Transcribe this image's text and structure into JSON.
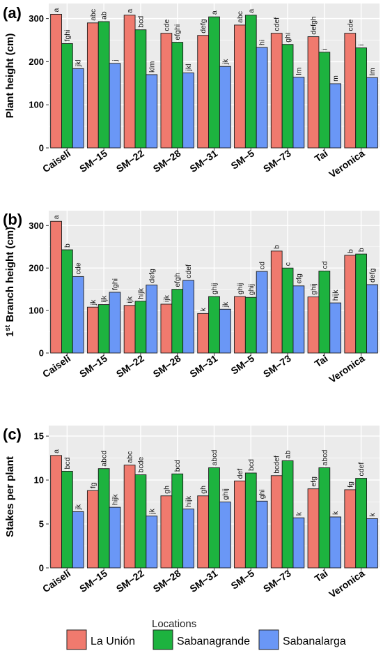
{
  "legend": {
    "title": "Locations",
    "items": [
      "La Unión",
      "Sabanagrande",
      "Sabanalarga"
    ]
  },
  "colors": {
    "series": [
      "#F07A6E",
      "#1DB33F",
      "#6A97F6"
    ],
    "panel_bg": "#EBEBEB",
    "grid": "#FFFFFF"
  },
  "chart_data": [
    {
      "type": "bar",
      "panel": "(a)",
      "ylabel": "Plant height (cm)",
      "ylim": [
        0,
        335
      ],
      "yticks": [
        0,
        100,
        200,
        300
      ],
      "categories": [
        "Caiseli",
        "SM−15",
        "SM−22",
        "SM−28",
        "SM−31",
        "SM−5",
        "SM−73",
        "Tai",
        "Veronica"
      ],
      "series": [
        {
          "name": "La Unión",
          "values": [
            310,
            290,
            308,
            266,
            261,
            285,
            266,
            258,
            266
          ],
          "labels": [
            "a",
            "abc",
            "a",
            "cde",
            "defg",
            "abc",
            "cdef",
            "defgh",
            "cde"
          ]
        },
        {
          "name": "Sabanagrande",
          "values": [
            242,
            293,
            274,
            245,
            304,
            308,
            240,
            222,
            232
          ],
          "labels": [
            "fghi",
            "ab",
            "bcd",
            "efghi",
            "a",
            "a",
            "ghi",
            "i",
            "i"
          ]
        },
        {
          "name": "Sabanalarga",
          "values": [
            184,
            196,
            170,
            174,
            189,
            233,
            164,
            149,
            163
          ],
          "labels": [
            "jkl",
            "j",
            "klm",
            "jkl",
            "jk",
            "hi",
            "lm",
            "m",
            "lm"
          ]
        }
      ]
    },
    {
      "type": "bar",
      "panel": "(b)",
      "ylabel": "1st Branch height (cm)",
      "ylabel_parts": [
        "1",
        "st",
        " Branch height (cm)"
      ],
      "ylim": [
        0,
        335
      ],
      "yticks": [
        0,
        100,
        200,
        300
      ],
      "categories": [
        "Caiseli",
        "SM−15",
        "SM−22",
        "SM−28",
        "SM−31",
        "SM−5",
        "SM−73",
        "Tai",
        "Veronica"
      ],
      "series": [
        {
          "name": "La Unión",
          "values": [
            310,
            108,
            112,
            115,
            93,
            133,
            240,
            132,
            230
          ],
          "labels": [
            "a",
            "jk",
            "ijk",
            "ijk",
            "k",
            "ghij",
            "b",
            "ghij",
            "b"
          ]
        },
        {
          "name": "Sabanagrande",
          "values": [
            243,
            114,
            122,
            150,
            133,
            131,
            200,
            193,
            233
          ],
          "labels": [
            "b",
            "ijk",
            "hijk",
            "efgh",
            "ghij",
            "ghij",
            "c",
            "cd",
            "b"
          ]
        },
        {
          "name": "Sabanalarga",
          "values": [
            180,
            143,
            160,
            171,
            103,
            192,
            158,
            118,
            161
          ],
          "labels": [
            "cde",
            "fghi",
            "defg",
            "cdef",
            "jk",
            "cd",
            "efg",
            "hijk",
            "defg"
          ]
        }
      ]
    },
    {
      "type": "bar",
      "panel": "(c)",
      "ylabel": "Stakes per plant",
      "ylim": [
        0,
        16.2
      ],
      "yticks": [
        0,
        5,
        10,
        15
      ],
      "categories": [
        "Caiseli",
        "SM−15",
        "SM−22",
        "SM−28",
        "SM−31",
        "SM−5",
        "SM−73",
        "Tai",
        "Veronica"
      ],
      "series": [
        {
          "name": "La Unión",
          "values": [
            12.8,
            8.8,
            11.7,
            8.2,
            8.2,
            9.9,
            10.5,
            9.0,
            8.9
          ],
          "labels": [
            "a",
            "fg",
            "abc",
            "gh",
            "gh",
            "def",
            "bcdef",
            "efg",
            "fg"
          ]
        },
        {
          "name": "Sabanagrande",
          "values": [
            11.0,
            11.3,
            10.6,
            10.7,
            11.4,
            10.8,
            12.2,
            11.4,
            10.2
          ],
          "labels": [
            "bcd",
            "abcd",
            "bcde",
            "bcd",
            "abcd",
            "bcd",
            "ab",
            "abcd",
            "cdef"
          ]
        },
        {
          "name": "Sabanalarga",
          "values": [
            6.4,
            6.9,
            5.9,
            6.7,
            7.5,
            7.6,
            5.7,
            5.8,
            5.6
          ],
          "labels": [
            "jk",
            "hijk",
            "jk",
            "hijk",
            "ghij",
            "ghi",
            "k",
            "k",
            "k"
          ]
        }
      ]
    }
  ]
}
